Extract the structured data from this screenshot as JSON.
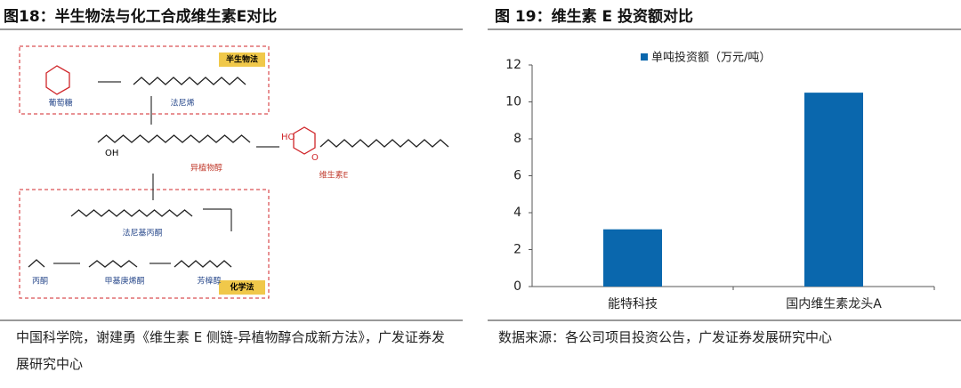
{
  "left": {
    "title": "图18：半生物法与化工合成维生素E对比",
    "source": "中国科学院，谢建勇《维生素 E 侧链-异植物醇合成新方法》，广发证券发展研究中心",
    "diagram": {
      "glucose": "葡萄糖",
      "farnesene": "法尼烯",
      "bio_method": "半生物法",
      "isophytol": "异植物醇",
      "vitamin_e": "维生素E",
      "farnesyl_acetone": "法尼基丙酮",
      "acetone": "丙酮",
      "methylheptenone": "甲基庚烯酮",
      "linalool": "芳樟醇",
      "chem_method": "化学法",
      "atom_oh": "OH",
      "atom_ho": "HO",
      "atom_o": "O"
    }
  },
  "chart_data": {
    "type": "bar",
    "title": "图 19：维生素 E 投资额对比",
    "source": "数据来源：各公司项目投资公告，广发证券发展研究中心",
    "categories": [
      "能特科技",
      "国内维生素龙头A"
    ],
    "series": [
      {
        "name": "单吨投资额（万元/吨）",
        "color": "#0a67ad",
        "values": [
          3.1,
          10.5
        ]
      }
    ],
    "ylim": [
      0,
      12
    ],
    "yticks": [
      0,
      2,
      4,
      6,
      8,
      10,
      12
    ],
    "grid": false
  }
}
